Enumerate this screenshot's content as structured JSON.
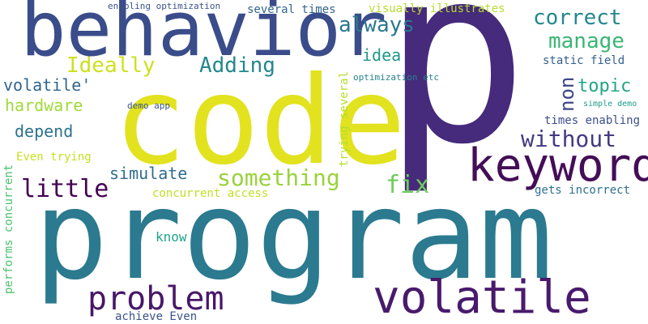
{
  "cloud": {
    "words": [
      {
        "text": "p",
        "color": "#462a7b"
      },
      {
        "text": "code",
        "color": "#e2e21f"
      },
      {
        "text": "program",
        "color": "#2b7a8f"
      },
      {
        "text": "behavior",
        "color": "#3a4c8a"
      },
      {
        "text": "volatile",
        "color": "#481a6c"
      },
      {
        "text": "keyword",
        "color": "#440e57"
      },
      {
        "text": "problem",
        "color": "#481768"
      },
      {
        "text": "something",
        "color": "#9ad23c"
      },
      {
        "text": "always",
        "color": "#2a788e"
      },
      {
        "text": "correct",
        "color": "#22888d"
      },
      {
        "text": "manage",
        "color": "#3ab674"
      },
      {
        "text": "Ideally",
        "color": "#cde11d"
      },
      {
        "text": "Adding",
        "color": "#24878e"
      },
      {
        "text": "little",
        "color": "#440154"
      },
      {
        "text": "without",
        "color": "#443a83"
      },
      {
        "text": "fix",
        "color": "#6ccd5a"
      },
      {
        "text": "topic",
        "color": "#21a585"
      },
      {
        "text": "non",
        "color": "#3f4889"
      },
      {
        "text": "idea",
        "color": "#1f988b"
      },
      {
        "text": "volatile'",
        "color": "#31668e"
      },
      {
        "text": "hardware",
        "color": "#a0da39"
      },
      {
        "text": "depend",
        "color": "#2d718e"
      },
      {
        "text": "simulate",
        "color": "#2f6c8e"
      },
      {
        "text": "know",
        "color": "#20a486"
      },
      {
        "text": "several times",
        "color": "#31668e"
      },
      {
        "text": "visually illustrates",
        "color": "#b5de2b"
      },
      {
        "text": "static field",
        "color": "#34618d"
      },
      {
        "text": "times enabling",
        "color": "#3c4f8a"
      },
      {
        "text": "concurrent access",
        "color": "#c2df23"
      },
      {
        "text": "gets incorrect",
        "color": "#2d708e"
      },
      {
        "text": "Even trying",
        "color": "#c8e020"
      },
      {
        "text": "achieve Even",
        "color": "#3b528b"
      },
      {
        "text": "enabling optimization",
        "color": "#3b528b"
      },
      {
        "text": "optimization etc",
        "color": "#25848e"
      },
      {
        "text": "demo app",
        "color": "#3a548c"
      },
      {
        "text": "simple demo",
        "color": "#1fa088"
      },
      {
        "text": "performs concurrent",
        "color": "#4ac16d"
      },
      {
        "text": "trying several",
        "color": "#b5de2b"
      }
    ]
  }
}
